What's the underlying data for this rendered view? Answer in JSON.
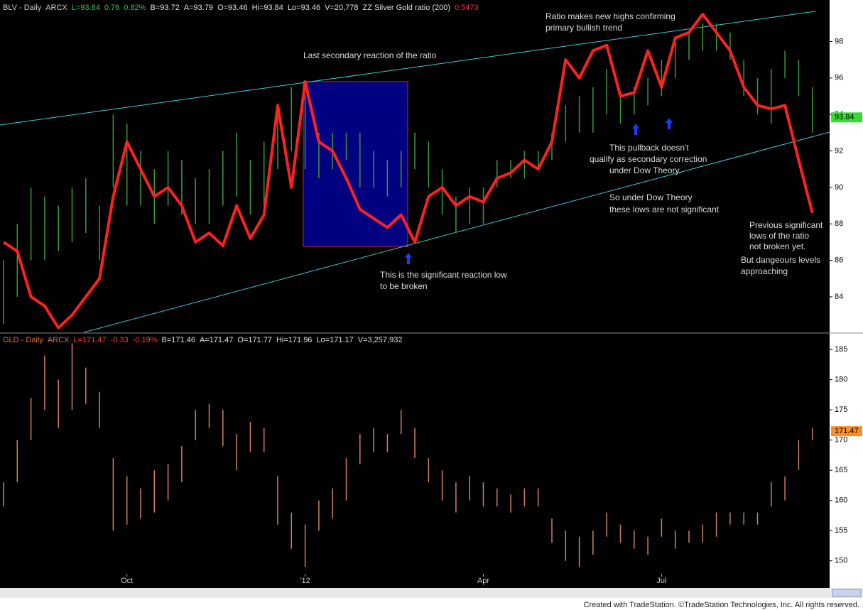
{
  "chart_data": [
    {
      "type": "ohlc",
      "legend": [
        {
          "text": "BLV - Daily",
          "color": "#d0d0d0"
        },
        {
          "text": "ARCX",
          "color": "#d0d0d0"
        },
        {
          "text": "L=93.84",
          "color": "#3cc83c"
        },
        {
          "text": "0.76",
          "color": "#3cc83c"
        },
        {
          "text": "0.82%",
          "color": "#3cc83c"
        },
        {
          "text": "B=93.72",
          "color": "#e0e0e0"
        },
        {
          "text": "A=93.79",
          "color": "#e0e0e0"
        },
        {
          "text": "O=93.46",
          "color": "#e0e0e0"
        },
        {
          "text": "Hi=93.84",
          "color": "#e0e0e0"
        },
        {
          "text": "Lo=93.46",
          "color": "#e0e0e0"
        },
        {
          "text": "V=20,778",
          "color": "#e0e0e0"
        },
        {
          "text": "ZZ Silver Gold ratio (200)",
          "color": "#e0e0e0"
        },
        {
          "text": "0.5473",
          "color": "#ff3030"
        }
      ],
      "series": [
        {
          "color": "#3a9a3a",
          "highs": [
            86,
            88,
            90,
            89.5,
            89,
            90,
            90.5,
            89,
            94,
            93.5,
            92,
            91,
            92,
            91.5,
            90.5,
            91,
            92,
            93,
            91.5,
            92.5,
            94.5,
            95.5,
            95,
            93,
            93,
            93,
            93,
            92,
            91.5,
            92,
            93,
            92.5,
            91,
            89.5,
            90,
            90,
            91.5,
            91.5,
            92,
            92,
            93,
            94.5,
            95,
            95.5,
            96.5,
            95,
            95.5,
            96,
            97,
            98,
            98.5,
            99,
            99,
            98.5,
            97,
            96,
            96.5,
            97.5,
            97,
            95.5
          ],
          "lows": [
            82.5,
            84,
            86,
            86,
            86.5,
            87,
            87.5,
            86,
            90,
            89,
            89,
            88,
            89,
            88.5,
            88,
            88,
            89,
            89.5,
            88.5,
            89,
            91,
            92,
            91,
            90.5,
            91,
            91.5,
            90,
            90,
            89.5,
            90,
            91,
            90,
            88.5,
            87.5,
            88,
            88,
            90,
            90.5,
            90.5,
            91,
            91.5,
            92.5,
            93,
            93,
            94,
            93.5,
            94,
            94.5,
            95,
            96,
            97,
            97.5,
            97.5,
            97,
            95,
            94,
            93.5,
            96,
            95,
            93
          ]
        },
        {
          "color": "#ff2020",
          "values": [
            87,
            86.5,
            84,
            83.5,
            82.3,
            83,
            84,
            85,
            89.5,
            92.5,
            91,
            89.5,
            90,
            89,
            87,
            87.5,
            86.8,
            89,
            87.2,
            88.5,
            94.5,
            90,
            95.8,
            92.5,
            92,
            90.5,
            88.8,
            88.3,
            87.8,
            88.5,
            87,
            89.5,
            90,
            89,
            89.5,
            89.2,
            90.5,
            90.8,
            91.5,
            91,
            92.5,
            97,
            96,
            97.5,
            97.8,
            95,
            95.2,
            97.5,
            95.5,
            98.2,
            98.5,
            99.5,
            98.5,
            97.5,
            95.5,
            94.5,
            94.3,
            94.5,
            91.5,
            88.6
          ]
        }
      ],
      "ylim": [
        82.05,
        100.2
      ],
      "yticks": [
        84,
        86,
        88,
        90,
        92,
        94,
        96,
        98
      ],
      "last_value": 93.84,
      "last_color": "#33dd33"
    },
    {
      "type": "ohlc",
      "legend": [
        {
          "text": "GLD - Daily",
          "color": "#e07050"
        },
        {
          "text": "ARCX",
          "color": "#e07050"
        },
        {
          "text": "L=171.47",
          "color": "#ff4020"
        },
        {
          "text": "-0.33",
          "color": "#ff4020"
        },
        {
          "text": "-0.19%",
          "color": "#ff4020"
        },
        {
          "text": "B=171.46",
          "color": "#e0e0e0"
        },
        {
          "text": "A=171.47",
          "color": "#e0e0e0"
        },
        {
          "text": "O=171.77",
          "color": "#e0e0e0"
        },
        {
          "text": "Hi=171.96",
          "color": "#e0e0e0"
        },
        {
          "text": "Lo=171.17",
          "color": "#e0e0e0"
        },
        {
          "text": "V=3,257,932",
          "color": "#e0e0e0"
        }
      ],
      "categories": [
        null,
        null,
        null,
        null,
        null,
        null,
        null,
        null,
        null,
        "Oct",
        null,
        null,
        null,
        null,
        null,
        null,
        null,
        null,
        null,
        null,
        null,
        null,
        "'12",
        null,
        null,
        null,
        null,
        null,
        null,
        null,
        null,
        null,
        null,
        null,
        null,
        "Apr",
        null,
        null,
        null,
        null,
        null,
        null,
        null,
        null,
        null,
        null,
        null,
        null,
        "Jul",
        null,
        null,
        null,
        null,
        null,
        null,
        null,
        null,
        null,
        null,
        null
      ],
      "series": [
        {
          "color": "#d08060",
          "highs": [
            163,
            170,
            177,
            184,
            180,
            186,
            182,
            178,
            167,
            164,
            162,
            165,
            166,
            169,
            175,
            176,
            175,
            171,
            173,
            172,
            164,
            158,
            156,
            160,
            162,
            167,
            171,
            172,
            171,
            175,
            172,
            167,
            165,
            163,
            164,
            163,
            162,
            161,
            162,
            162,
            157,
            155,
            154,
            155,
            158,
            156,
            155,
            154,
            157,
            155,
            155,
            156,
            158,
            158,
            158,
            158,
            163,
            164,
            170,
            172
          ],
          "lows": [
            159,
            163,
            170,
            175,
            172,
            175,
            176,
            172,
            155,
            156,
            157,
            158,
            160,
            163,
            170,
            172,
            169,
            165,
            168,
            168,
            156,
            152,
            149,
            155,
            157,
            160,
            166,
            168,
            168,
            171,
            167,
            163,
            160,
            158,
            160,
            159,
            159,
            158,
            159,
            159,
            153,
            150,
            149,
            151,
            154,
            153,
            152,
            151,
            154,
            152,
            153,
            153,
            154,
            156,
            156,
            156,
            159,
            160,
            165,
            170
          ]
        }
      ],
      "ylim": [
        145.5,
        187.6
      ],
      "yticks": [
        150,
        155,
        160,
        165,
        170,
        175,
        180,
        185
      ],
      "last_value": 171.47,
      "last_color": "#ff8c20"
    }
  ],
  "annotations": {
    "highs": [
      "Ratio makes new highs confirming",
      "primary bullish trend"
    ],
    "reaction": [
      "Last secondary reaction of the ratio"
    ],
    "low": [
      "This is the significant reaction low",
      "to be broken"
    ],
    "pullback": [
      "This pullback doesn't",
      "qualify as secondary correction",
      "under Dow Theory."
    ],
    "dow": [
      "So under Dow Theory",
      "these lows are not significant"
    ],
    "previous": [
      "Previous significant",
      "lows of the ratio",
      "not broken yet."
    ],
    "danger": [
      "But dangeours levels",
      "approaching"
    ]
  },
  "footer": "Created with TradeStation. ©TradeStation Technologies, Inc. All rights reserved."
}
